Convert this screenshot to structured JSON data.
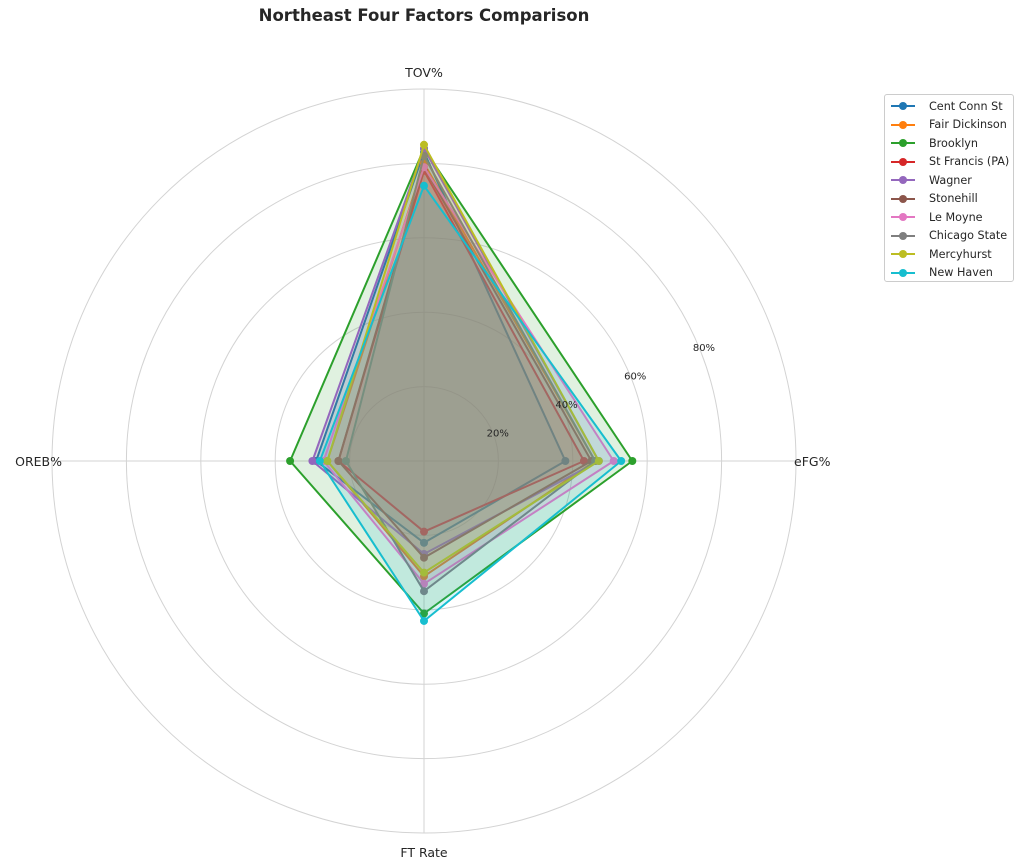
{
  "chart_data": {
    "type": "radar",
    "title": "Northeast Four Factors Comparison",
    "axes": [
      "eFG%",
      "TOV%",
      "OREB%",
      "FT Rate"
    ],
    "radial_ticks": [
      "20%",
      "40%",
      "60%",
      "80%"
    ],
    "radial_tick_values": [
      20,
      40,
      60,
      80
    ],
    "rmax": 100,
    "grid": true,
    "legend_position": "top-right",
    "series": [
      {
        "name": "Cent Conn St",
        "color": "#1f77b4",
        "values": [
          38,
          83,
          29,
          22
        ]
      },
      {
        "name": "Fair Dickinson",
        "color": "#ff7f0e",
        "values": [
          46,
          80,
          26,
          31
        ]
      },
      {
        "name": "Brooklyn",
        "color": "#2ca02c",
        "values": [
          56,
          84,
          36,
          41
        ]
      },
      {
        "name": "St Francis (PA)",
        "color": "#d62728",
        "values": [
          43,
          78,
          23,
          19
        ]
      },
      {
        "name": "Wagner",
        "color": "#9467bd",
        "values": [
          47,
          84,
          30,
          25
        ]
      },
      {
        "name": "Stonehill",
        "color": "#8c564b",
        "values": [
          45,
          79,
          23,
          26
        ]
      },
      {
        "name": "Le Moyne",
        "color": "#e377c2",
        "values": [
          51,
          79,
          27,
          33
        ]
      },
      {
        "name": "Chicago State",
        "color": "#7f7f7f",
        "values": [
          46,
          82,
          21,
          35
        ]
      },
      {
        "name": "Mercyhurst",
        "color": "#bcbd22",
        "values": [
          47,
          85,
          26,
          30
        ]
      },
      {
        "name": "New Haven",
        "color": "#17becf",
        "values": [
          53,
          74,
          28,
          43
        ]
      }
    ]
  }
}
